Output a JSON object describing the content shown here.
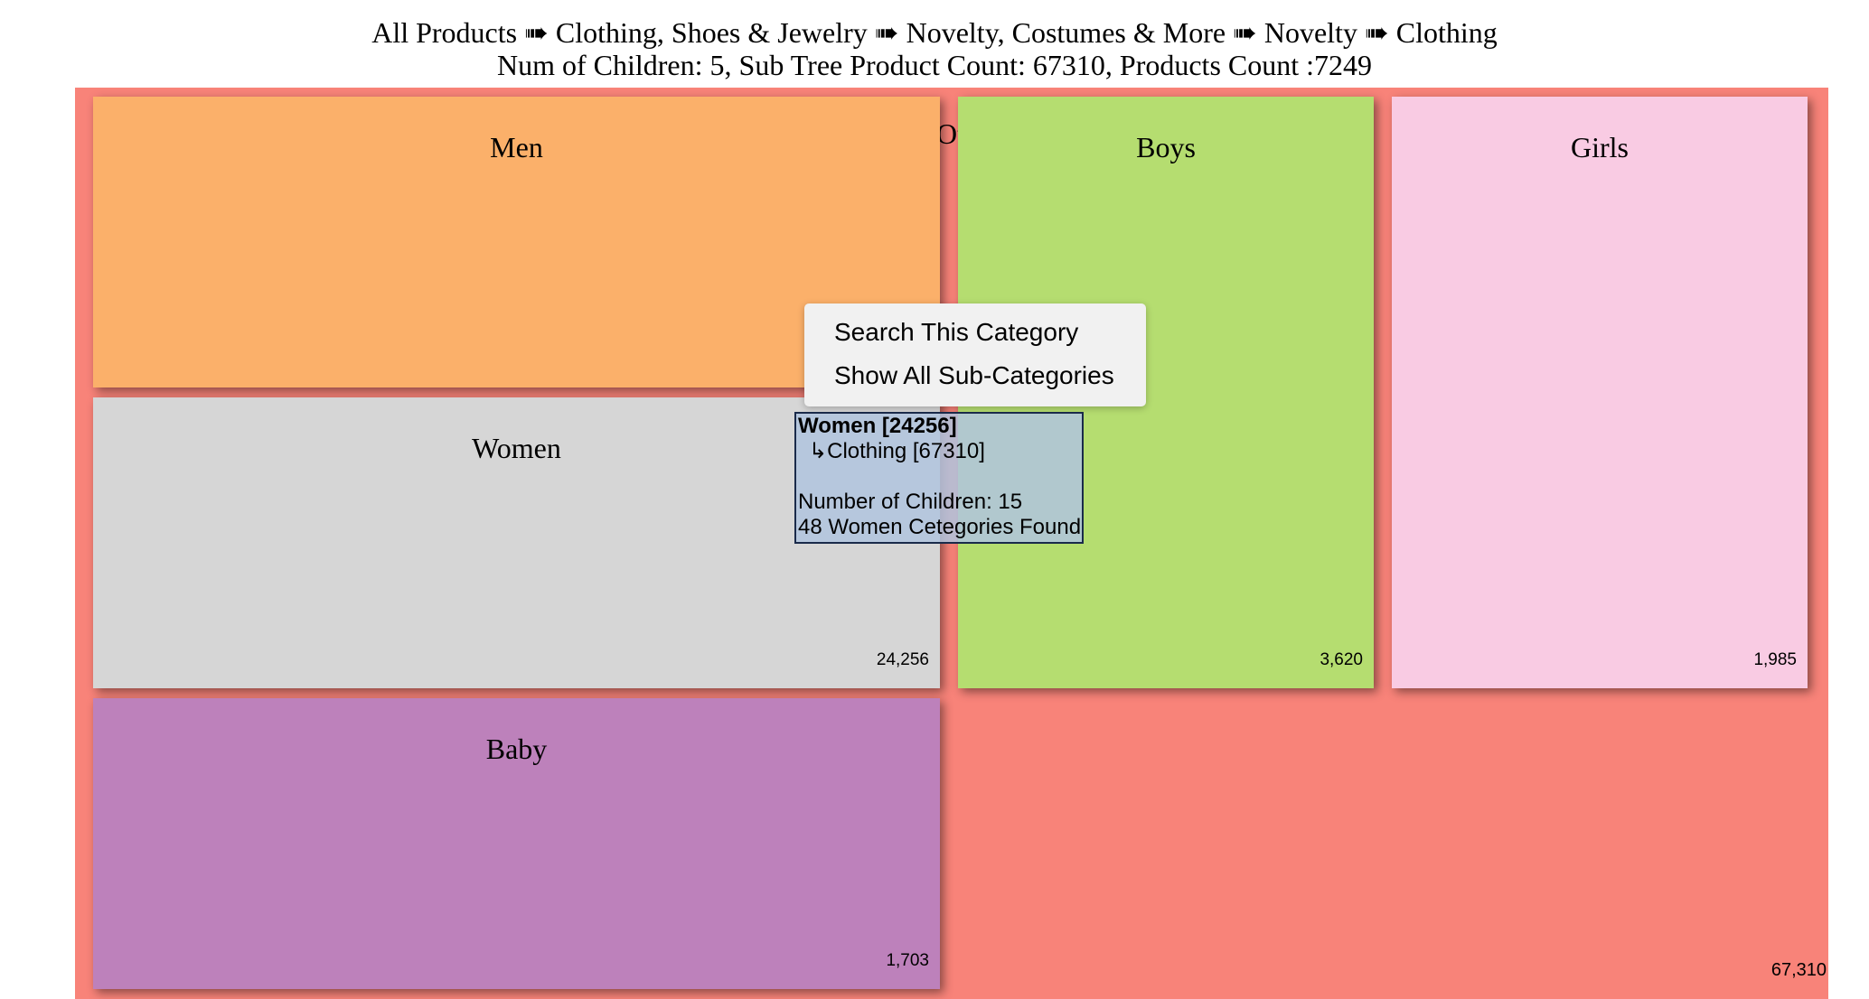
{
  "header": {
    "breadcrumb": "All Products ➠ Clothing, Shoes & Jewelry ➠ Novelty, Costumes & More ➠ Novelty ➠ Clothing",
    "summary": "Num of Children: 5, Sub Tree Product Count: 67310, Products Count :7249"
  },
  "root": {
    "label": "Others",
    "count": "67,310",
    "color": "#f88379"
  },
  "cells": {
    "men": {
      "label": "Men",
      "count": "",
      "color": "#fbb06a"
    },
    "women": {
      "label": "Women",
      "count": "24,256",
      "color": "#d6d6d6"
    },
    "baby": {
      "label": "Baby",
      "count": "1,703",
      "color": "#bd81bb"
    },
    "boys": {
      "label": "Boys",
      "count": "3,620",
      "color": "#b5dd70"
    },
    "girls": {
      "label": "Girls",
      "count": "1,985",
      "color": "#f9cbe3"
    }
  },
  "context_menu": {
    "items": [
      "Search This Category",
      "Show All Sub-Categories"
    ]
  },
  "tooltip": {
    "title": "Women [24256]",
    "parent": "↳Clothing [67310]",
    "children": "Number of Children: 15",
    "found": "48 Women Cetegories Found"
  }
}
